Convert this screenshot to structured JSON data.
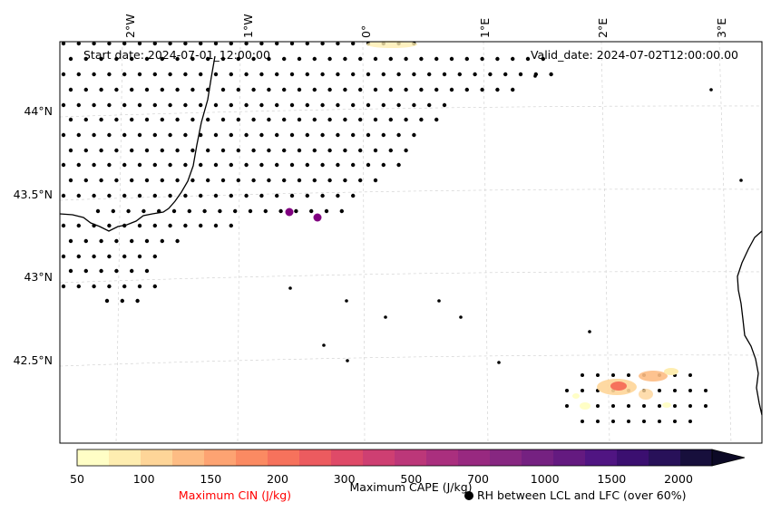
{
  "map": {
    "start_date_label": "Start date: 2024-07-01_12:00:00",
    "valid_date_label": "Valid_date: 2024-07-02T12:00:00.00",
    "lon_labels": [
      "2°W",
      "1°W",
      "0°",
      "1°E",
      "2°E",
      "3°E"
    ],
    "lat_labels": [
      "44°N",
      "43.5°N",
      "43°N",
      "42.5°N"
    ]
  },
  "colorbar": {
    "ticks": [
      "50",
      "100",
      "150",
      "200",
      "300",
      "500",
      "700",
      "1000",
      "1500",
      "2000"
    ],
    "colors": [
      "#fffec6",
      "#feedb0",
      "#fed598",
      "#fdbc84",
      "#fda372",
      "#fb8a62",
      "#f6725c",
      "#ec5b5f",
      "#df4a68",
      "#ce3f72",
      "#bc3779",
      "#aa2f7e",
      "#982980",
      "#872781",
      "#752181",
      "#641a80",
      "#501582",
      "#3b0f70",
      "#281159",
      "#170f3c",
      "#0c0926"
    ],
    "cape_label": "Maximum CAPE (J/kg)",
    "cin_label": "Maximum CIN (J/kg)",
    "rh_label": "RH between LCL and LFC (over 60%)",
    "cin_color": "#ff0000"
  }
}
